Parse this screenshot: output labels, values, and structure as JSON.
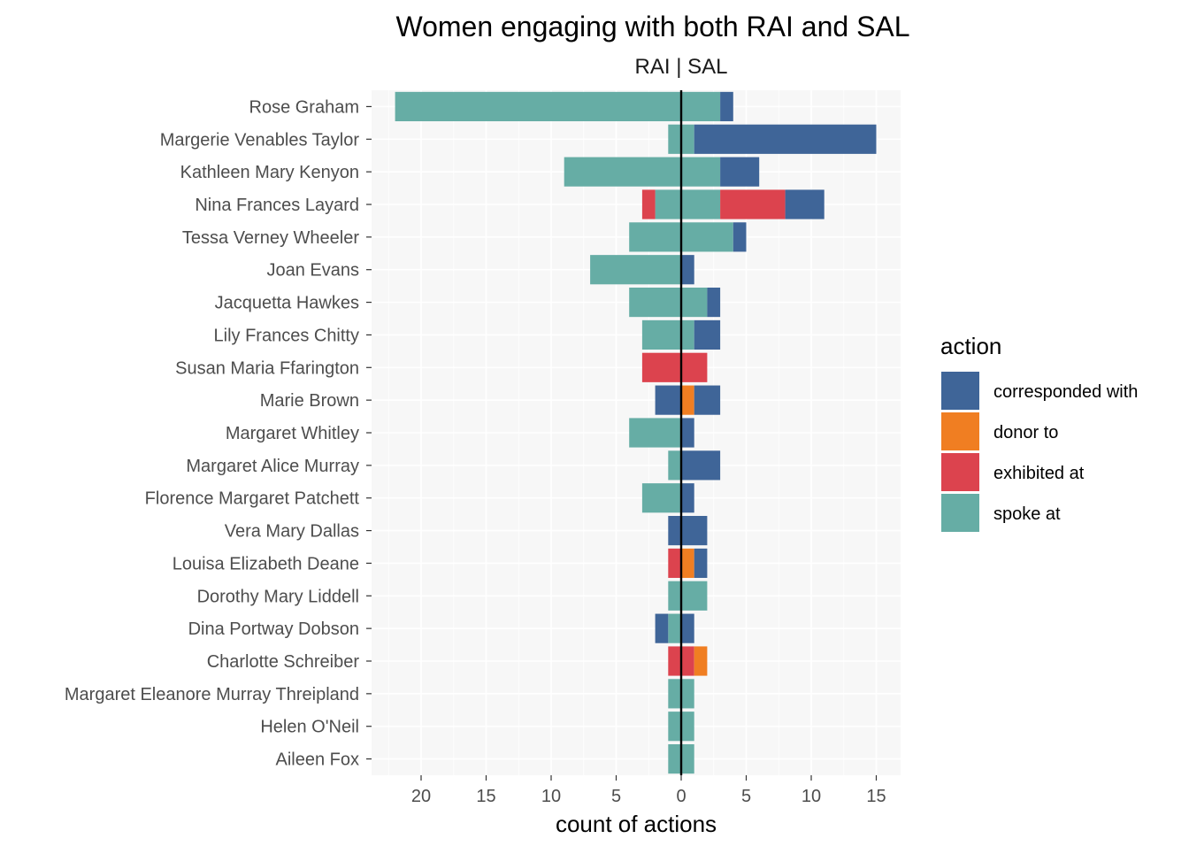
{
  "chart_data": {
    "type": "bar",
    "orientation": "horizontal",
    "diverging": true,
    "title": "Women engaging with both RAI and SAL",
    "subtitle": "RAI | SAL",
    "xlabel": "count of actions",
    "ylabel": "",
    "xlim": [
      -24,
      17
    ],
    "x_ticks": [
      -20,
      -15,
      -10,
      -5,
      0,
      5,
      10,
      15
    ],
    "x_tick_labels": [
      "20",
      "15",
      "10",
      "5",
      "0",
      "5",
      "10",
      "15"
    ],
    "grid": true,
    "legend_position": "right",
    "legend_title": "action",
    "legend": [
      {
        "name": "corresponded with",
        "color": "#3f6598"
      },
      {
        "name": "donor to",
        "color": "#f07e22"
      },
      {
        "name": "exhibited at",
        "color": "#dc434e"
      },
      {
        "name": "spoke at",
        "color": "#66ada5"
      }
    ],
    "categories": [
      "Rose Graham",
      "Margerie Venables Taylor",
      "Kathleen Mary Kenyon",
      "Nina Frances Layard",
      "Tessa Verney Wheeler",
      "Joan Evans",
      "Jacquetta Hawkes",
      "Lily Frances Chitty",
      "Susan Maria Ffarington",
      "Marie Brown",
      "Margaret Whitley",
      "Margaret Alice Murray",
      "Florence Margaret Patchett",
      "Vera Mary Dallas",
      "Louisa Elizabeth Deane",
      "Dorothy Mary Liddell",
      "Dina Portway Dobson",
      "Charlotte Schreiber",
      "Margaret Eleanore Murray Threipland",
      "Helen O'Neil",
      "Aileen Fox"
    ],
    "sides": [
      {
        "name": "RAI",
        "series": [
          {
            "name": "spoke at",
            "values": [
              22,
              1,
              9,
              2,
              4,
              7,
              4,
              3,
              0,
              0,
              4,
              1,
              3,
              0,
              0,
              1,
              1,
              0,
              1,
              1,
              1
            ]
          },
          {
            "name": "exhibited at",
            "values": [
              0,
              0,
              0,
              1,
              0,
              0,
              0,
              0,
              3,
              0,
              0,
              0,
              0,
              0,
              1,
              0,
              0,
              1,
              0,
              0,
              0
            ]
          },
          {
            "name": "donor to",
            "values": [
              0,
              0,
              0,
              0,
              0,
              0,
              0,
              0,
              0,
              0,
              0,
              0,
              0,
              0,
              0,
              0,
              0,
              0,
              0,
              0,
              0
            ]
          },
          {
            "name": "corresponded with",
            "values": [
              0,
              0,
              0,
              0,
              0,
              0,
              0,
              0,
              0,
              2,
              0,
              0,
              0,
              1,
              0,
              0,
              1,
              0,
              0,
              0,
              0
            ]
          }
        ]
      },
      {
        "name": "SAL",
        "series": [
          {
            "name": "spoke at",
            "values": [
              3,
              1,
              3,
              3,
              4,
              0,
              2,
              1,
              0,
              0,
              0,
              0,
              0,
              0,
              0,
              2,
              0,
              0,
              1,
              1,
              1
            ]
          },
          {
            "name": "exhibited at",
            "values": [
              0,
              0,
              0,
              5,
              0,
              0,
              0,
              0,
              2,
              0,
              0,
              0,
              0,
              0,
              0,
              0,
              0,
              1,
              0,
              0,
              0
            ]
          },
          {
            "name": "donor to",
            "values": [
              0,
              0,
              0,
              0,
              0,
              0,
              0,
              0,
              0,
              1,
              0,
              0,
              0,
              0,
              1,
              0,
              0,
              1,
              0,
              0,
              0
            ]
          },
          {
            "name": "corresponded with",
            "values": [
              1,
              14,
              3,
              3,
              1,
              1,
              1,
              2,
              0,
              2,
              1,
              3,
              1,
              2,
              1,
              0,
              1,
              0,
              0,
              0,
              0
            ]
          }
        ]
      }
    ]
  }
}
